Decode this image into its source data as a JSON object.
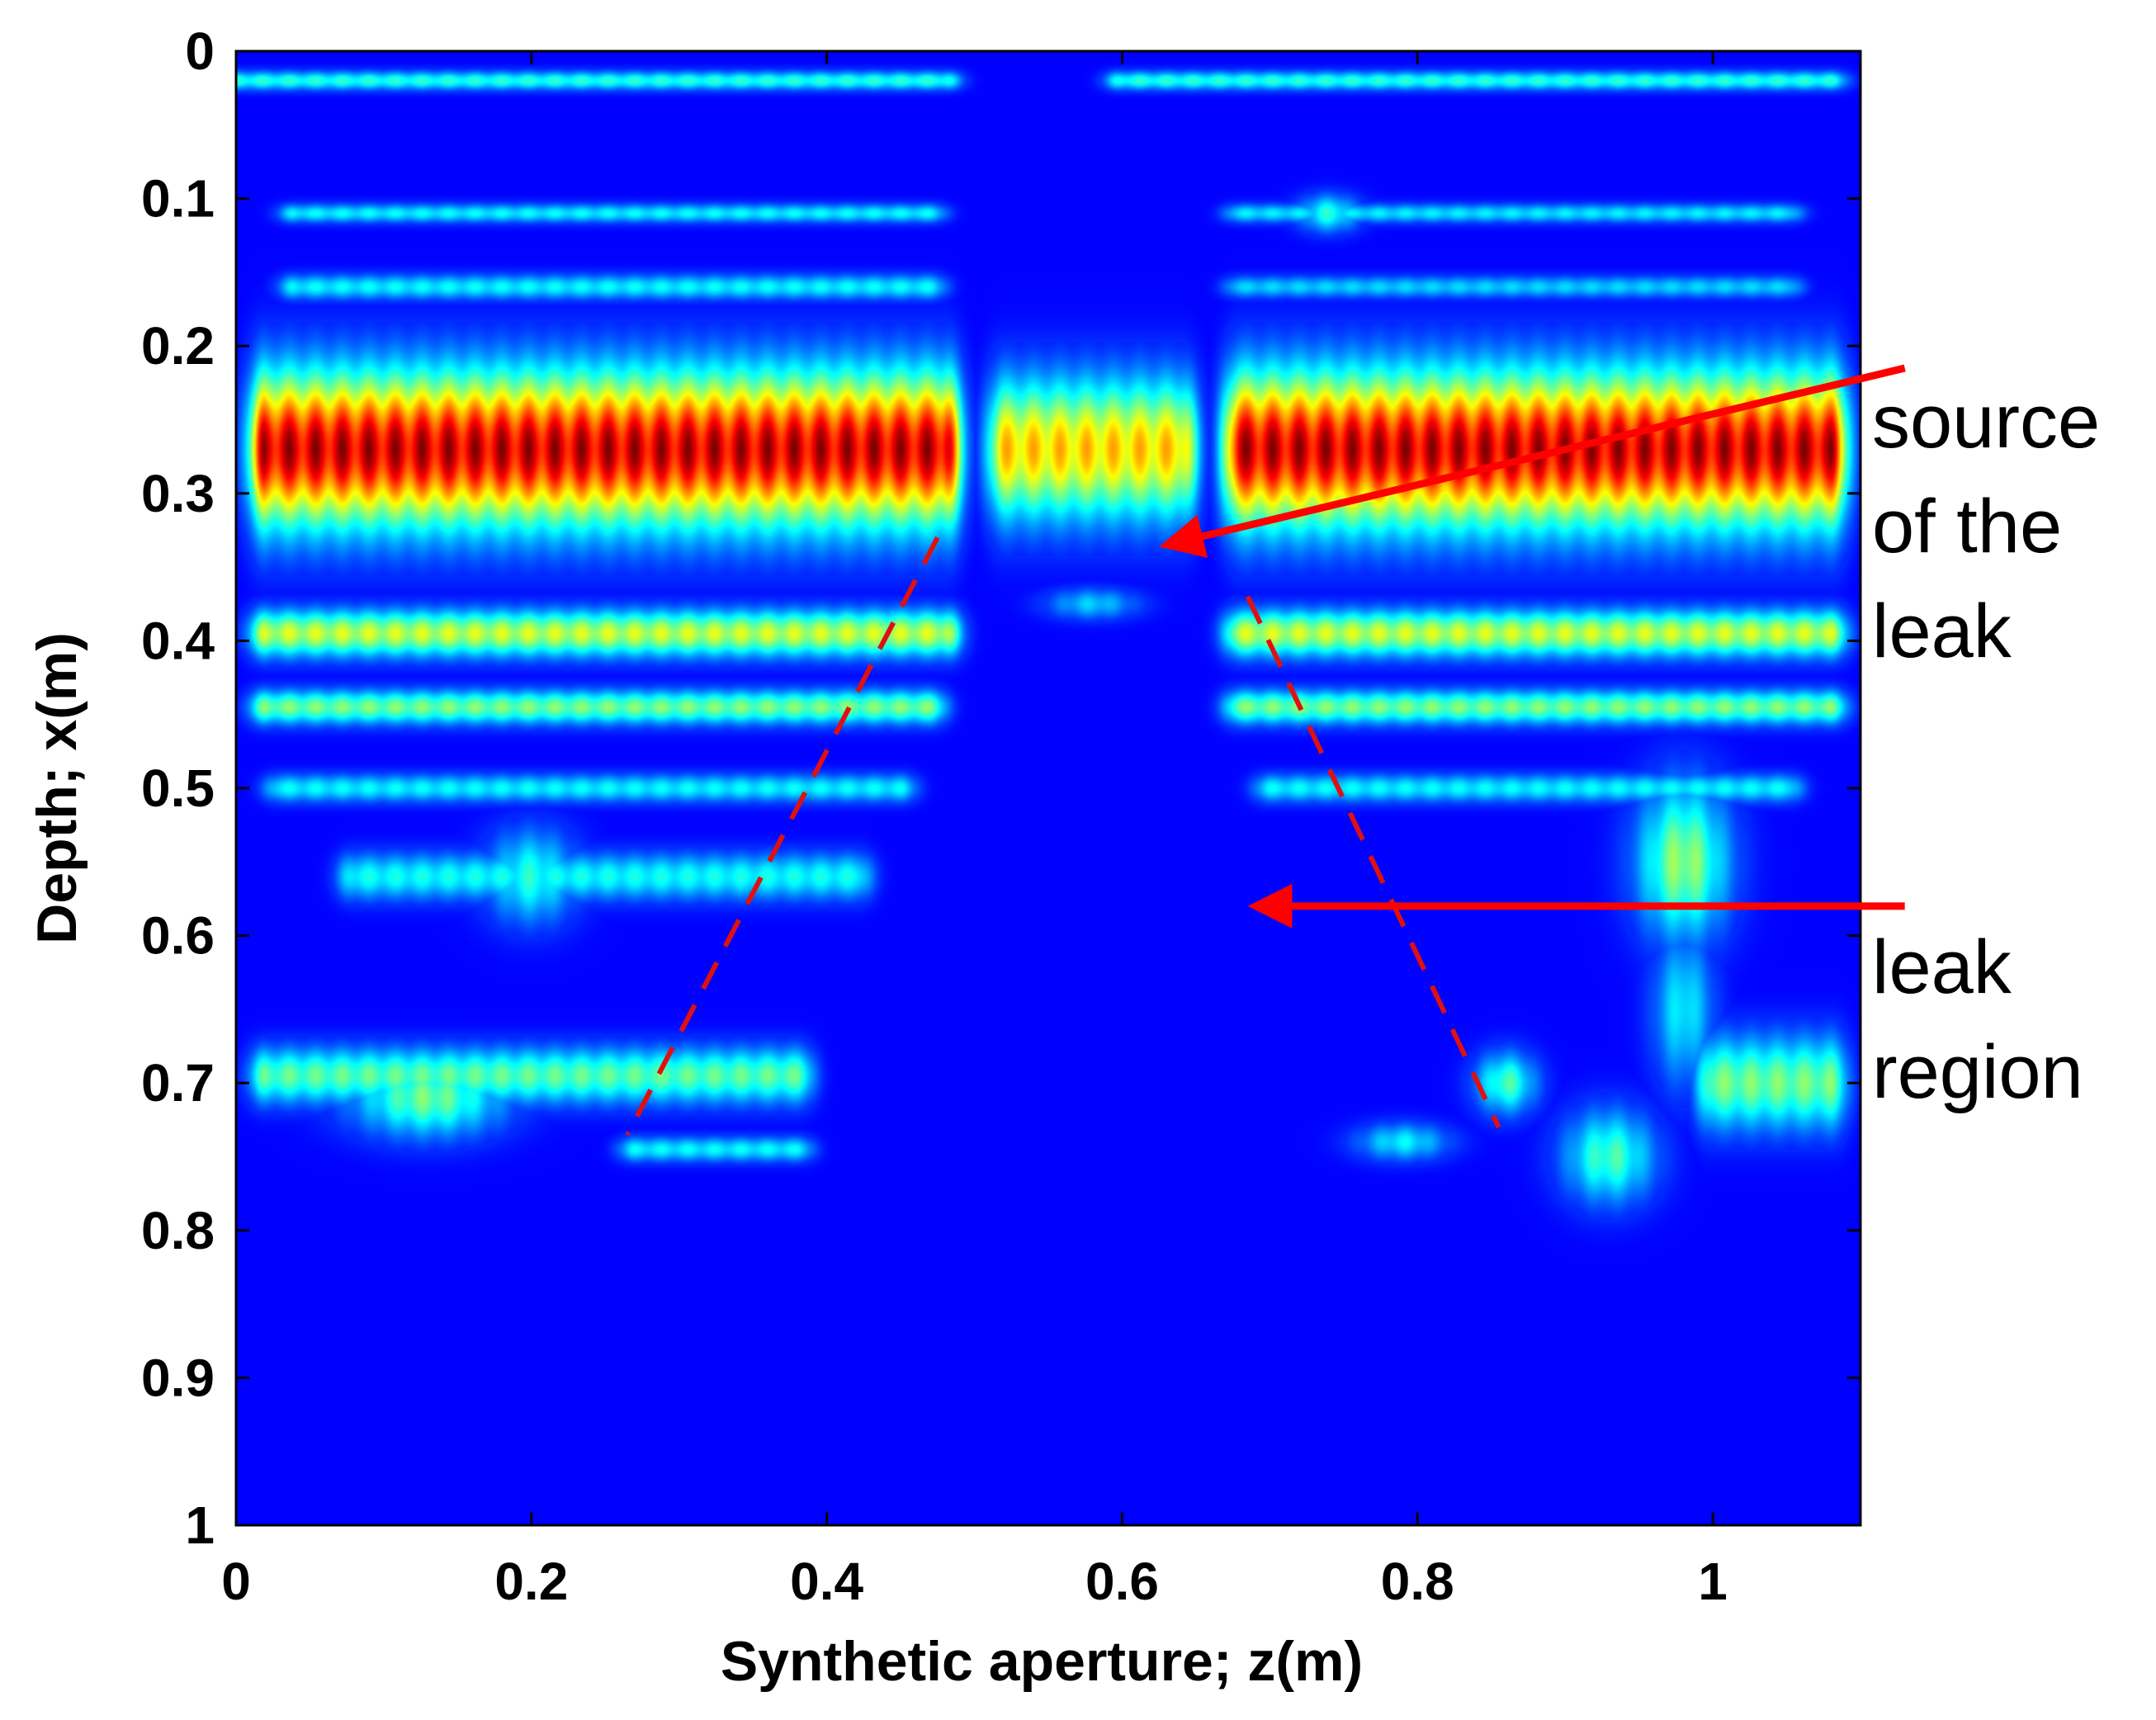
{
  "chart_data": {
    "type": "heatmap",
    "title": "",
    "xlabel": "Synthetic aperture; z(m)",
    "ylabel": "Depth; x(m)",
    "xlim": [
      0,
      1.1
    ],
    "ylim": [
      0,
      1
    ],
    "y_inverted": true,
    "grid": false,
    "colormap": "jet",
    "xticks": [
      "0",
      "0.2",
      "0.4",
      "0.6",
      "0.8",
      "1"
    ],
    "xtick_values": [
      0,
      0.2,
      0.4,
      0.6,
      0.8,
      1.0
    ],
    "yticks": [
      "0",
      "0.1",
      "0.2",
      "0.3",
      "0.4",
      "0.5",
      "0.6",
      "0.7",
      "0.8",
      "0.9",
      "1"
    ],
    "ytick_values": [
      0,
      0.1,
      0.2,
      0.3,
      0.4,
      0.5,
      0.6,
      0.7,
      0.8,
      0.9,
      1.0
    ],
    "colors": {
      "background": "#00008f",
      "arrow": "#ff0000",
      "dashed": "#e01010"
    },
    "bands": [
      {
        "z0": 0.0,
        "z1": 0.48,
        "x": 0.02,
        "sigma": 0.006,
        "level": 0.35
      },
      {
        "z0": 0.6,
        "z1": 1.08,
        "x": 0.02,
        "sigma": 0.006,
        "level": 0.35
      },
      {
        "z0": 0.04,
        "z1": 0.47,
        "x": 0.11,
        "sigma": 0.006,
        "level": 0.3
      },
      {
        "z0": 0.68,
        "z1": 1.05,
        "x": 0.11,
        "sigma": 0.006,
        "level": 0.28
      },
      {
        "z0": 0.04,
        "z1": 0.47,
        "x": 0.16,
        "sigma": 0.008,
        "level": 0.3
      },
      {
        "z0": 0.68,
        "z1": 1.05,
        "x": 0.16,
        "sigma": 0.007,
        "level": 0.25
      },
      {
        "z0": 0.02,
        "z1": 0.48,
        "x": 0.27,
        "sigma": 0.05,
        "level": 1.0
      },
      {
        "z0": 0.68,
        "z1": 1.08,
        "x": 0.27,
        "sigma": 0.05,
        "level": 1.0
      },
      {
        "z0": 0.52,
        "z1": 0.64,
        "x": 0.27,
        "sigma": 0.045,
        "level": 0.68
      },
      {
        "z0": 0.02,
        "z1": 0.48,
        "x": 0.395,
        "sigma": 0.015,
        "level": 0.55
      },
      {
        "z0": 0.68,
        "z1": 1.08,
        "x": 0.395,
        "sigma": 0.015,
        "level": 0.55
      },
      {
        "z0": 0.02,
        "z1": 0.47,
        "x": 0.445,
        "sigma": 0.011,
        "level": 0.45
      },
      {
        "z0": 0.68,
        "z1": 1.08,
        "x": 0.445,
        "sigma": 0.011,
        "level": 0.45
      },
      {
        "z0": 0.03,
        "z1": 0.45,
        "x": 0.5,
        "sigma": 0.009,
        "level": 0.3
      },
      {
        "z0": 0.7,
        "z1": 1.05,
        "x": 0.5,
        "sigma": 0.009,
        "level": 0.3
      },
      {
        "z0": 0.08,
        "z1": 0.42,
        "x": 0.56,
        "sigma": 0.015,
        "level": 0.32
      },
      {
        "z0": 0.02,
        "z1": 0.38,
        "x": 0.695,
        "sigma": 0.018,
        "level": 0.42
      },
      {
        "z0": 0.27,
        "z1": 0.38,
        "x": 0.745,
        "sigma": 0.008,
        "level": 0.3
      },
      {
        "z0": 1.0,
        "z1": 1.08,
        "x": 0.7,
        "sigma": 0.03,
        "level": 0.45
      }
    ],
    "blobs": [
      {
        "z": 0.13,
        "x": 0.71,
        "sz": 0.05,
        "sx": 0.025,
        "level": 0.45
      },
      {
        "z": 0.2,
        "x": 0.56,
        "sz": 0.03,
        "sx": 0.03,
        "level": 0.35
      },
      {
        "z": 0.74,
        "x": 0.11,
        "sz": 0.02,
        "sx": 0.012,
        "level": 0.35
      },
      {
        "z": 0.98,
        "x": 0.55,
        "sz": 0.03,
        "sx": 0.05,
        "level": 0.5
      },
      {
        "z": 0.98,
        "x": 0.65,
        "sz": 0.02,
        "sx": 0.05,
        "level": 0.3
      },
      {
        "z": 0.86,
        "x": 0.7,
        "sz": 0.02,
        "sx": 0.02,
        "level": 0.4
      },
      {
        "z": 0.93,
        "x": 0.75,
        "sz": 0.03,
        "sx": 0.03,
        "level": 0.4
      },
      {
        "z": 0.79,
        "x": 0.74,
        "sz": 0.03,
        "sx": 0.012,
        "level": 0.3
      },
      {
        "z": 0.06,
        "x": 0.27,
        "sz": 0.03,
        "sx": 0.03,
        "level": 0.25
      },
      {
        "z": 1.03,
        "x": 0.27,
        "sz": 0.03,
        "sx": 0.03,
        "level": 0.2
      },
      {
        "z": 0.58,
        "x": 0.375,
        "sz": 0.03,
        "sx": 0.01,
        "level": 0.25
      }
    ],
    "dashed_lines": [
      {
        "z0": 0.475,
        "x0": 0.33,
        "z1": 0.265,
        "x1": 0.735
      },
      {
        "z0": 0.685,
        "x0": 0.37,
        "z1": 0.855,
        "x1": 0.73
      }
    ],
    "annotations": [
      {
        "lines": [
          "source",
          "of the",
          "leak"
        ],
        "arrow_from": [
          1.13,
          0.215
        ],
        "arrow_to": [
          0.63,
          0.335
        ]
      },
      {
        "lines": [
          "leak",
          "region"
        ],
        "arrow_from": [
          1.13,
          0.58
        ],
        "arrow_to": [
          0.69,
          0.58
        ]
      }
    ]
  }
}
